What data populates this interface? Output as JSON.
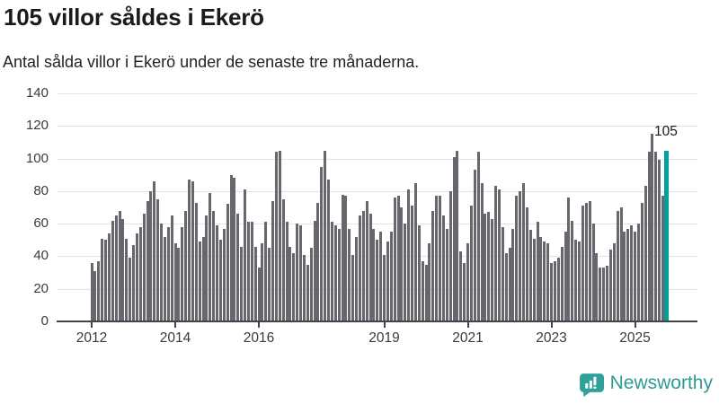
{
  "header": {
    "title": "105 villor såldes i Ekerö",
    "subtitle": "Antal sålda villor i Ekerö under de senaste tre månaderna."
  },
  "chart_data": {
    "type": "bar",
    "title": "105 villor såldes i Ekerö",
    "subtitle": "Antal sålda villor i Ekerö under de senaste tre månaderna.",
    "xlabel": "",
    "ylabel": "",
    "ylim": [
      0,
      140
    ],
    "yticks": [
      0,
      20,
      40,
      60,
      80,
      100,
      120,
      140
    ],
    "grid": true,
    "x_period": "monthly",
    "x_start": "2012",
    "x_end": "2025",
    "values": [
      36,
      31,
      37,
      51,
      50,
      54,
      62,
      65,
      68,
      63,
      51,
      39,
      47,
      54,
      58,
      66,
      74,
      80,
      86,
      75,
      60,
      52,
      58,
      65,
      48,
      45,
      58,
      68,
      87,
      86,
      73,
      49,
      52,
      65,
      79,
      68,
      59,
      50,
      57,
      72,
      90,
      88,
      66,
      46,
      81,
      61,
      61,
      46,
      33,
      48,
      61,
      45,
      74,
      104,
      105,
      75,
      61,
      46,
      42,
      60,
      59,
      41,
      35,
      45,
      62,
      73,
      95,
      105,
      87,
      61,
      59,
      57,
      78,
      77,
      57,
      41,
      52,
      65,
      68,
      74,
      66,
      57,
      50,
      55,
      41,
      49,
      55,
      76,
      77,
      70,
      60,
      81,
      71,
      85,
      59,
      37,
      35,
      48,
      68,
      77,
      77,
      65,
      57,
      80,
      101,
      105,
      43,
      36,
      48,
      71,
      93,
      104,
      85,
      66,
      67,
      63,
      83,
      81,
      58,
      42,
      45,
      57,
      77,
      80,
      85,
      70,
      56,
      51,
      61,
      52,
      49,
      48,
      36,
      37,
      39,
      46,
      55,
      76,
      62,
      50,
      49,
      71,
      73,
      74,
      60,
      42,
      33,
      33,
      34,
      44,
      48,
      68,
      70,
      55,
      57,
      59,
      55,
      60,
      73,
      83,
      104,
      115,
      104,
      99,
      77,
      105
    ],
    "bar_color": "#67676d",
    "highlight": {
      "index": 165,
      "value": 105,
      "label": "105",
      "color": "#00a09b"
    },
    "xticks": [
      {
        "label": "2012",
        "month": 0
      },
      {
        "label": "2014",
        "month": 24
      },
      {
        "label": "2016",
        "month": 48
      },
      {
        "label": "2019",
        "month": 84
      },
      {
        "label": "2021",
        "month": 108
      },
      {
        "label": "2023",
        "month": 132
      },
      {
        "label": "2025",
        "month": 156
      }
    ],
    "legend": null
  },
  "annotation": {
    "value_label": "105"
  },
  "footer": {
    "brand": "Newsworthy",
    "brand_color": "#2f9a93",
    "icon": "newsworthy-speech-bubble-bar-chart-icon"
  }
}
